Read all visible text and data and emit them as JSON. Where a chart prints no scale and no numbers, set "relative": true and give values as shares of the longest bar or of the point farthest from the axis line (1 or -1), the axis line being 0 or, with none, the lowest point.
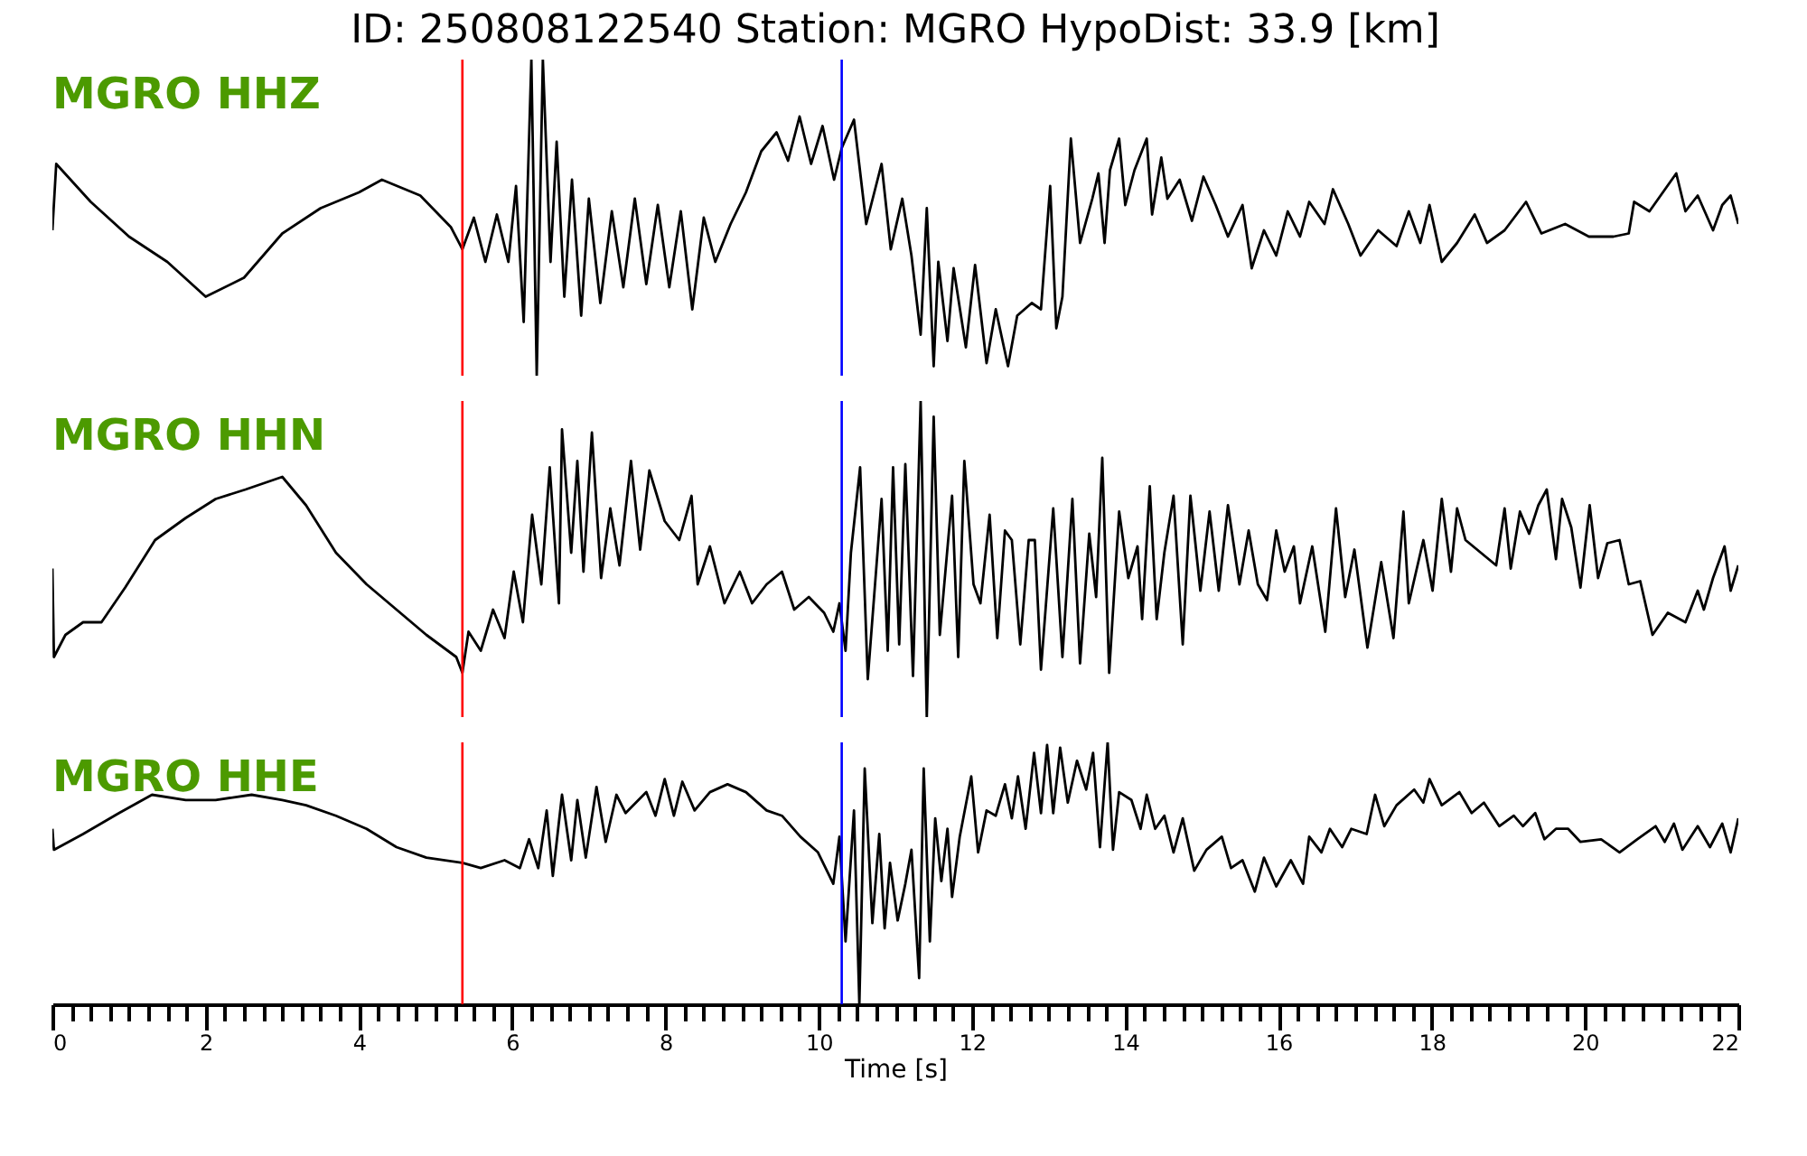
{
  "chart_data": [
    {
      "type": "line",
      "title": "ID: 250808122540   Station: MGRO   HypoDist:    33.9 [km]",
      "annotations": [
        "MGRO HHZ"
      ],
      "relative": true,
      "xlim": [
        0,
        22
      ],
      "tick_labels": false,
      "x": [
        0,
        0.05,
        0.5,
        1.0,
        1.5,
        2.0,
        2.5,
        3.0,
        3.5,
        4.0,
        4.3,
        4.8,
        5.2,
        5.35,
        5.5,
        5.65,
        5.8,
        5.95,
        6.05,
        6.15,
        6.25,
        6.32,
        6.4,
        6.5,
        6.58,
        6.68,
        6.78,
        6.9,
        7.0,
        7.15,
        7.3,
        7.45,
        7.6,
        7.75,
        7.9,
        8.05,
        8.2,
        8.35,
        8.5,
        8.65,
        8.85,
        9.05,
        9.25,
        9.45,
        9.6,
        9.75,
        9.9,
        10.05,
        10.2,
        10.3,
        10.46,
        10.62,
        10.82,
        10.94,
        11.09,
        11.21,
        11.33,
        11.41,
        11.5,
        11.56,
        11.68,
        11.76,
        11.92,
        12.04,
        12.19,
        12.31,
        12.47,
        12.59,
        12.78,
        12.9,
        13.02,
        13.1,
        13.18,
        13.29,
        13.41,
        13.57,
        13.65,
        13.73,
        13.8,
        13.92,
        14.0,
        14.12,
        14.28,
        14.35,
        14.47,
        14.55,
        14.71,
        14.87,
        15.02,
        15.18,
        15.34,
        15.53,
        15.65,
        15.81,
        15.97,
        16.12,
        16.28,
        16.4,
        16.6,
        16.71,
        16.91,
        17.07,
        17.3,
        17.54,
        17.7,
        17.85,
        17.97,
        18.13,
        18.33,
        18.56,
        18.72,
        18.95,
        19.23,
        19.43,
        19.74,
        20.05,
        20.37,
        20.57,
        20.64,
        20.84,
        21.19,
        21.31,
        21.47,
        21.67,
        21.79,
        21.9,
        22.0
      ],
      "series": [
        {
          "color": "#000000",
          "values": [
            0.46,
            0.67,
            0.55,
            0.44,
            0.36,
            0.25,
            0.31,
            0.45,
            0.53,
            0.58,
            0.62,
            0.57,
            0.47,
            0.4,
            0.5,
            0.36,
            0.51,
            0.36,
            0.6,
            0.17,
            1.0,
            0.0,
            1.0,
            0.36,
            0.74,
            0.25,
            0.62,
            0.19,
            0.56,
            0.23,
            0.52,
            0.28,
            0.56,
            0.29,
            0.54,
            0.28,
            0.52,
            0.21,
            0.5,
            0.36,
            0.48,
            0.58,
            0.71,
            0.77,
            0.68,
            0.82,
            0.67,
            0.79,
            0.62,
            0.72,
            0.81,
            0.48,
            0.67,
            0.4,
            0.56,
            0.38,
            0.13,
            0.53,
            0.03,
            0.36,
            0.11,
            0.34,
            0.09,
            0.35,
            0.04,
            0.21,
            0.03,
            0.19,
            0.23,
            0.21,
            0.6,
            0.15,
            0.25,
            0.75,
            0.42,
            0.56,
            0.64,
            0.42,
            0.65,
            0.75,
            0.54,
            0.65,
            0.75,
            0.51,
            0.69,
            0.56,
            0.62,
            0.49,
            0.63,
            0.54,
            0.44,
            0.54,
            0.34,
            0.46,
            0.38,
            0.52,
            0.44,
            0.55,
            0.48,
            0.59,
            0.48,
            0.38,
            0.46,
            0.41,
            0.52,
            0.42,
            0.54,
            0.36,
            0.42,
            0.51,
            0.42,
            0.46,
            0.55,
            0.45,
            0.48,
            0.44,
            0.44,
            0.45,
            0.55,
            0.52,
            0.64,
            0.52,
            0.57,
            0.46,
            0.54,
            0.57,
            0.48
          ]
        }
      ],
      "ref_lines": [
        {
          "axis": "x",
          "value": 5.35,
          "color": "#ff0000"
        },
        {
          "axis": "x",
          "value": 10.3,
          "color": "#0000ff"
        }
      ]
    },
    {
      "type": "line",
      "annotations": [
        "MGRO HHN"
      ],
      "relative": true,
      "xlim": [
        0,
        22
      ],
      "tick_labels": false,
      "x": [
        0,
        0.02,
        0.17,
        0.4,
        0.64,
        0.95,
        1.34,
        1.74,
        2.13,
        2.52,
        3.0,
        3.31,
        3.7,
        4.1,
        4.49,
        4.88,
        5.27,
        5.35,
        5.43,
        5.59,
        5.75,
        5.9,
        6.02,
        6.14,
        6.26,
        6.38,
        6.49,
        6.61,
        6.65,
        6.77,
        6.85,
        6.93,
        7.04,
        7.16,
        7.28,
        7.4,
        7.55,
        7.67,
        7.79,
        7.99,
        8.18,
        8.34,
        8.42,
        8.58,
        8.77,
        8.97,
        9.13,
        9.32,
        9.52,
        9.68,
        9.87,
        10.07,
        10.19,
        10.27,
        10.35,
        10.42,
        10.54,
        10.64,
        10.82,
        10.9,
        10.97,
        11.05,
        11.13,
        11.23,
        11.33,
        11.41,
        11.5,
        11.58,
        11.74,
        11.82,
        11.9,
        12.02,
        12.11,
        12.23,
        12.33,
        12.43,
        12.52,
        12.63,
        12.74,
        12.82,
        12.9,
        13.06,
        13.18,
        13.31,
        13.41,
        13.53,
        13.62,
        13.7,
        13.79,
        13.92,
        14.04,
        14.16,
        14.22,
        14.32,
        14.41,
        14.51,
        14.63,
        14.75,
        14.85,
        14.98,
        15.1,
        15.22,
        15.34,
        15.49,
        15.61,
        15.73,
        15.85,
        15.97,
        16.08,
        16.2,
        16.28,
        16.44,
        16.61,
        16.75,
        16.87,
        16.99,
        17.16,
        17.34,
        17.5,
        17.63,
        17.7,
        17.89,
        18.01,
        18.13,
        18.25,
        18.33,
        18.44,
        18.64,
        18.84,
        18.95,
        19.03,
        19.15,
        19.27,
        19.39,
        19.5,
        19.62,
        19.7,
        19.82,
        19.94,
        20.06,
        20.17,
        20.29,
        20.45,
        20.57,
        20.72,
        20.88,
        21.08,
        21.31,
        21.47,
        21.55,
        21.67,
        21.82,
        21.9,
        22.0
      ],
      "series": [
        {
          "color": "#000000",
          "values": [
            0.47,
            0.19,
            0.26,
            0.3,
            0.3,
            0.41,
            0.56,
            0.63,
            0.69,
            0.72,
            0.76,
            0.67,
            0.52,
            0.42,
            0.34,
            0.26,
            0.19,
            0.14,
            0.27,
            0.21,
            0.34,
            0.25,
            0.46,
            0.3,
            0.64,
            0.42,
            0.79,
            0.36,
            0.91,
            0.52,
            0.81,
            0.46,
            0.9,
            0.44,
            0.66,
            0.48,
            0.81,
            0.53,
            0.78,
            0.62,
            0.56,
            0.7,
            0.42,
            0.54,
            0.36,
            0.46,
            0.36,
            0.42,
            0.46,
            0.34,
            0.38,
            0.33,
            0.27,
            0.36,
            0.21,
            0.52,
            0.79,
            0.12,
            0.69,
            0.21,
            0.79,
            0.23,
            0.8,
            0.13,
            1.0,
            0.0,
            0.95,
            0.26,
            0.7,
            0.19,
            0.81,
            0.42,
            0.36,
            0.64,
            0.25,
            0.59,
            0.56,
            0.23,
            0.56,
            0.56,
            0.15,
            0.66,
            0.19,
            0.69,
            0.17,
            0.58,
            0.38,
            0.82,
            0.14,
            0.65,
            0.44,
            0.54,
            0.31,
            0.73,
            0.31,
            0.52,
            0.7,
            0.23,
            0.7,
            0.4,
            0.65,
            0.4,
            0.67,
            0.42,
            0.59,
            0.42,
            0.37,
            0.59,
            0.46,
            0.54,
            0.36,
            0.54,
            0.27,
            0.66,
            0.38,
            0.53,
            0.22,
            0.49,
            0.25,
            0.65,
            0.36,
            0.56,
            0.4,
            0.69,
            0.46,
            0.66,
            0.56,
            0.52,
            0.48,
            0.66,
            0.47,
            0.65,
            0.58,
            0.67,
            0.72,
            0.5,
            0.69,
            0.6,
            0.41,
            0.67,
            0.44,
            0.55,
            0.56,
            0.42,
            0.43,
            0.26,
            0.33,
            0.3,
            0.4,
            0.34,
            0.44,
            0.54,
            0.4,
            0.48
          ]
        }
      ],
      "ref_lines": [
        {
          "axis": "x",
          "value": 5.35,
          "color": "#ff0000"
        },
        {
          "axis": "x",
          "value": 10.3,
          "color": "#0000ff"
        }
      ]
    },
    {
      "type": "line",
      "annotations": [
        "MGRO HHE"
      ],
      "relative": true,
      "xlabel": "Time [s]",
      "xlim": [
        0,
        22
      ],
      "tick_labels": "x",
      "xticks": [
        0,
        {
          "value": 0.25,
          "label": null
        },
        {
          "value": 0.5,
          "label": null
        },
        {
          "value": 0.75,
          "label": null
        },
        {
          "value": 1,
          "label": null
        },
        {
          "value": 1.25,
          "label": null
        },
        {
          "value": 1.5,
          "label": null
        },
        {
          "value": 1.75,
          "label": null
        },
        2,
        {
          "value": 2.25,
          "label": null
        },
        {
          "value": 2.5,
          "label": null
        },
        {
          "value": 2.75,
          "label": null
        },
        {
          "value": 3,
          "label": null
        },
        {
          "value": 3.25,
          "label": null
        },
        {
          "value": 3.5,
          "label": null
        },
        {
          "value": 3.75,
          "label": null
        },
        4,
        {
          "value": 4.25,
          "label": null
        },
        {
          "value": 4.5,
          "label": null
        },
        {
          "value": 4.75,
          "label": null
        },
        {
          "value": 5,
          "label": null
        },
        {
          "value": 5.25,
          "label": null
        },
        {
          "value": 5.5,
          "label": null
        },
        {
          "value": 5.75,
          "label": null
        },
        6,
        {
          "value": 6.25,
          "label": null
        },
        {
          "value": 6.5,
          "label": null
        },
        {
          "value": 6.75,
          "label": null
        },
        {
          "value": 7,
          "label": null
        },
        {
          "value": 7.25,
          "label": null
        },
        {
          "value": 7.5,
          "label": null
        },
        {
          "value": 7.75,
          "label": null
        },
        8,
        {
          "value": 8.25,
          "label": null
        },
        {
          "value": 8.5,
          "label": null
        },
        {
          "value": 8.75,
          "label": null
        },
        {
          "value": 9,
          "label": null
        },
        {
          "value": 9.25,
          "label": null
        },
        {
          "value": 9.5,
          "label": null
        },
        {
          "value": 9.75,
          "label": null
        },
        10,
        {
          "value": 10.25,
          "label": null
        },
        {
          "value": 10.5,
          "label": null
        },
        {
          "value": 10.75,
          "label": null
        },
        {
          "value": 11,
          "label": null
        },
        {
          "value": 11.25,
          "label": null
        },
        {
          "value": 11.5,
          "label": null
        },
        {
          "value": 11.75,
          "label": null
        },
        12,
        {
          "value": 12.25,
          "label": null
        },
        {
          "value": 12.5,
          "label": null
        },
        {
          "value": 12.75,
          "label": null
        },
        {
          "value": 13,
          "label": null
        },
        {
          "value": 13.25,
          "label": null
        },
        {
          "value": 13.5,
          "label": null
        },
        {
          "value": 13.75,
          "label": null
        },
        14,
        {
          "value": 14.25,
          "label": null
        },
        {
          "value": 14.5,
          "label": null
        },
        {
          "value": 14.75,
          "label": null
        },
        {
          "value": 15,
          "label": null
        },
        {
          "value": 15.25,
          "label": null
        },
        {
          "value": 15.5,
          "label": null
        },
        {
          "value": 15.75,
          "label": null
        },
        16,
        {
          "value": 16.25,
          "label": null
        },
        {
          "value": 16.5,
          "label": null
        },
        {
          "value": 16.75,
          "label": null
        },
        {
          "value": 17,
          "label": null
        },
        {
          "value": 17.25,
          "label": null
        },
        {
          "value": 17.5,
          "label": null
        },
        {
          "value": 17.75,
          "label": null
        },
        18,
        {
          "value": 18.25,
          "label": null
        },
        {
          "value": 18.5,
          "label": null
        },
        {
          "value": 18.75,
          "label": null
        },
        {
          "value": 19,
          "label": null
        },
        {
          "value": 19.25,
          "label": null
        },
        {
          "value": 19.5,
          "label": null
        },
        {
          "value": 19.75,
          "label": null
        },
        20,
        {
          "value": 20.25,
          "label": null
        },
        {
          "value": 20.5,
          "label": null
        },
        {
          "value": 20.75,
          "label": null
        },
        {
          "value": 21,
          "label": null
        },
        {
          "value": 21.25,
          "label": null
        },
        {
          "value": 21.5,
          "label": null
        },
        {
          "value": 21.75,
          "label": null
        },
        22
      ],
      "x": [
        0,
        0.02,
        0.4,
        0.87,
        1.3,
        1.74,
        2.13,
        2.6,
        3.0,
        3.31,
        3.7,
        4.1,
        4.49,
        4.88,
        5.35,
        5.59,
        5.9,
        6.1,
        6.22,
        6.34,
        6.45,
        6.53,
        6.65,
        6.77,
        6.85,
        6.96,
        7.1,
        7.22,
        7.36,
        7.48,
        7.75,
        7.87,
        7.99,
        8.11,
        8.22,
        8.38,
        8.58,
        8.81,
        9.05,
        9.32,
        9.52,
        9.76,
        9.99,
        10.19,
        10.27,
        10.35,
        10.46,
        10.53,
        10.6,
        10.7,
        10.79,
        10.86,
        10.93,
        11.03,
        11.13,
        11.21,
        11.31,
        11.37,
        11.45,
        11.52,
        11.6,
        11.68,
        11.74,
        11.84,
        11.99,
        12.08,
        12.19,
        12.31,
        12.43,
        12.52,
        12.6,
        12.7,
        12.81,
        12.9,
        12.98,
        13.06,
        13.15,
        13.25,
        13.37,
        13.49,
        13.58,
        13.67,
        13.77,
        13.84,
        13.92,
        14.08,
        14.2,
        14.28,
        14.39,
        14.51,
        14.63,
        14.75,
        14.9,
        15.06,
        15.26,
        15.38,
        15.53,
        15.69,
        15.81,
        15.97,
        16.16,
        16.32,
        16.4,
        16.56,
        16.67,
        16.83,
        16.95,
        17.15,
        17.26,
        17.38,
        17.54,
        17.77,
        17.89,
        17.97,
        18.13,
        18.36,
        18.52,
        18.68,
        18.88,
        19.07,
        19.19,
        19.35,
        19.47,
        19.62,
        19.78,
        19.94,
        20.21,
        20.45,
        20.68,
        20.92,
        21.04,
        21.16,
        21.27,
        21.47,
        21.63,
        21.79,
        21.9,
        22.0
      ],
      "series": [
        {
          "color": "#000000",
          "values": [
            0.67,
            0.59,
            0.65,
            0.73,
            0.8,
            0.78,
            0.78,
            0.8,
            0.78,
            0.76,
            0.72,
            0.67,
            0.6,
            0.56,
            0.54,
            0.52,
            0.55,
            0.52,
            0.63,
            0.52,
            0.74,
            0.49,
            0.8,
            0.55,
            0.78,
            0.56,
            0.83,
            0.62,
            0.8,
            0.73,
            0.81,
            0.72,
            0.86,
            0.72,
            0.85,
            0.74,
            0.81,
            0.84,
            0.81,
            0.74,
            0.72,
            0.64,
            0.58,
            0.46,
            0.64,
            0.24,
            0.74,
            0.0,
            0.9,
            0.31,
            0.65,
            0.29,
            0.54,
            0.32,
            0.46,
            0.59,
            0.1,
            0.9,
            0.24,
            0.71,
            0.47,
            0.67,
            0.41,
            0.64,
            0.87,
            0.58,
            0.74,
            0.72,
            0.84,
            0.71,
            0.87,
            0.67,
            0.96,
            0.73,
            0.99,
            0.73,
            0.98,
            0.77,
            0.93,
            0.82,
            0.96,
            0.6,
            1.0,
            0.59,
            0.81,
            0.78,
            0.67,
            0.8,
            0.67,
            0.72,
            0.58,
            0.71,
            0.51,
            0.59,
            0.64,
            0.52,
            0.55,
            0.43,
            0.56,
            0.45,
            0.55,
            0.46,
            0.64,
            0.58,
            0.67,
            0.6,
            0.67,
            0.65,
            0.8,
            0.68,
            0.76,
            0.82,
            0.77,
            0.86,
            0.76,
            0.81,
            0.73,
            0.77,
            0.68,
            0.72,
            0.68,
            0.73,
            0.63,
            0.67,
            0.67,
            0.62,
            0.63,
            0.58,
            0.63,
            0.68,
            0.62,
            0.69,
            0.59,
            0.68,
            0.6,
            0.69,
            0.58,
            0.71
          ]
        }
      ],
      "ref_lines": [
        {
          "axis": "x",
          "value": 5.35,
          "color": "#ff0000"
        },
        {
          "axis": "x",
          "value": 10.3,
          "color": "#0000ff"
        }
      ]
    }
  ]
}
